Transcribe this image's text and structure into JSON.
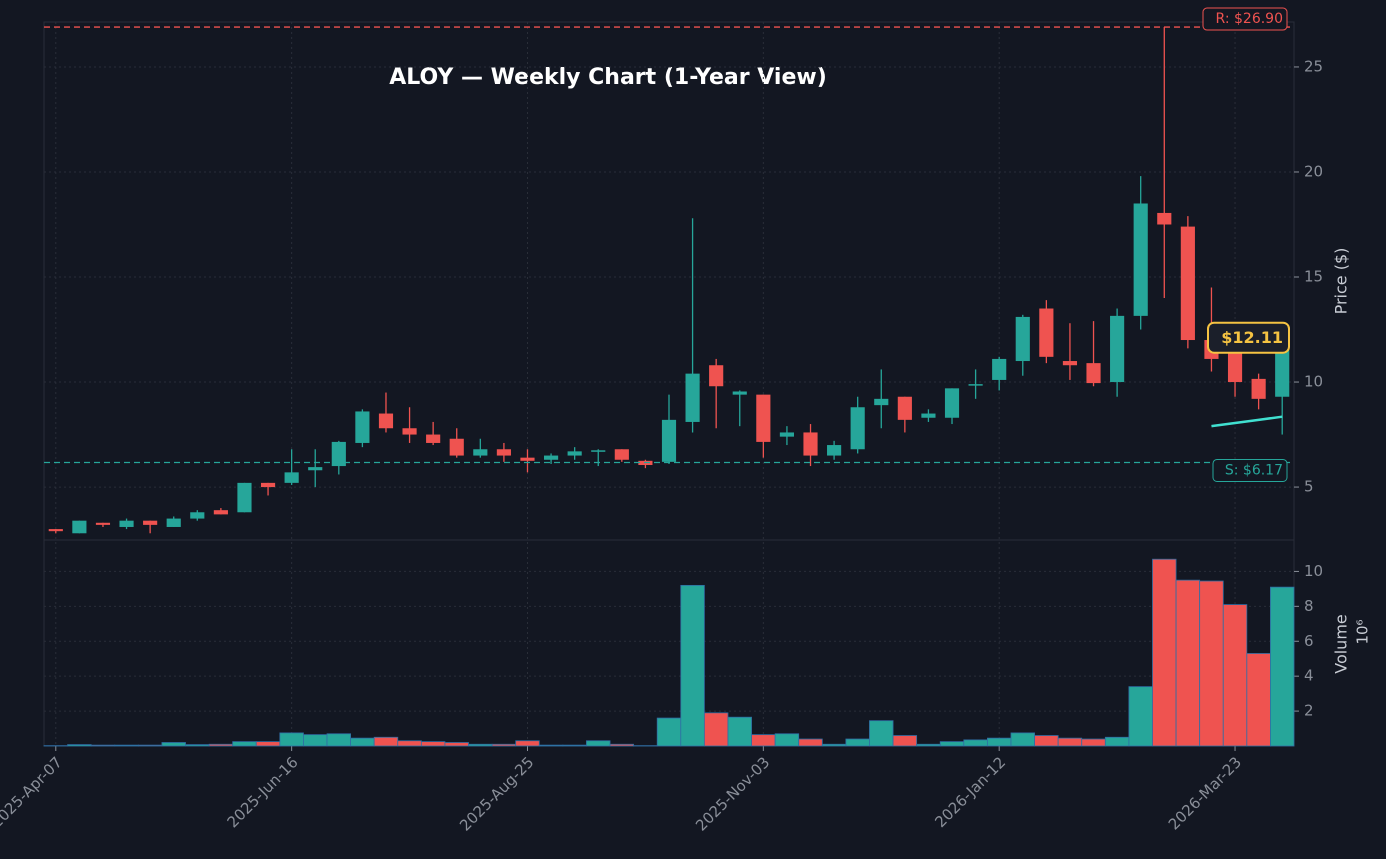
{
  "chart_data": {
    "type": "candlestick",
    "title": "ALOY — Weekly Chart (1-Year View)",
    "y_label": "Price ($)",
    "volume_label": "Volume",
    "volume_scale": "10⁶",
    "categories": [
      "2025-Apr-07",
      null,
      null,
      null,
      null,
      null,
      null,
      null,
      null,
      null,
      "2025-Jun-16",
      null,
      null,
      null,
      null,
      null,
      null,
      null,
      null,
      null,
      "2025-Aug-25",
      null,
      null,
      null,
      null,
      null,
      null,
      null,
      null,
      null,
      "2025-Nov-03",
      null,
      null,
      null,
      null,
      null,
      null,
      null,
      null,
      null,
      "2026-Jan-12",
      null,
      null,
      null,
      null,
      null,
      null,
      null,
      null,
      null,
      "2026-Mar-23",
      null,
      null
    ],
    "open": [
      3.0,
      2.8,
      3.3,
      3.1,
      3.4,
      3.1,
      3.5,
      3.9,
      3.8,
      5.2,
      5.2,
      5.8,
      6.0,
      7.1,
      8.5,
      7.8,
      7.5,
      7.3,
      6.5,
      6.8,
      6.4,
      6.3,
      6.5,
      6.7,
      6.8,
      6.25,
      6.2,
      8.1,
      10.8,
      9.4,
      9.4,
      7.4,
      7.6,
      6.5,
      6.8,
      8.9,
      9.3,
      8.3,
      8.3,
      9.85,
      10.1,
      11.0,
      13.5,
      11.0,
      10.9,
      10.0,
      13.15,
      18.05,
      17.4,
      12.0,
      11.9,
      10.15,
      9.3
    ],
    "high": [
      3.0,
      3.4,
      3.3,
      3.5,
      3.4,
      3.6,
      3.9,
      4.0,
      5.2,
      5.2,
      6.8,
      6.8,
      7.2,
      8.7,
      9.5,
      8.8,
      8.1,
      7.8,
      7.3,
      7.1,
      6.8,
      6.6,
      6.9,
      6.8,
      6.8,
      6.3,
      9.4,
      17.8,
      11.1,
      9.6,
      9.4,
      7.9,
      8.0,
      7.2,
      9.3,
      10.6,
      9.3,
      8.7,
      9.7,
      10.6,
      11.2,
      13.2,
      13.9,
      12.8,
      12.9,
      13.5,
      19.8,
      26.9,
      17.9,
      14.5,
      12.4,
      10.4,
      12.2
    ],
    "low": [
      2.8,
      2.8,
      3.1,
      3.0,
      2.8,
      3.1,
      3.4,
      3.7,
      3.8,
      4.6,
      5.1,
      5.0,
      5.6,
      6.9,
      7.6,
      7.1,
      7.0,
      6.4,
      6.4,
      6.2,
      5.7,
      6.1,
      6.3,
      6.0,
      6.2,
      5.9,
      6.1,
      7.6,
      7.8,
      7.9,
      6.4,
      7.0,
      6.0,
      6.3,
      6.6,
      7.8,
      7.6,
      8.1,
      8.0,
      9.2,
      9.6,
      10.3,
      10.9,
      10.1,
      9.8,
      9.3,
      12.5,
      14.0,
      11.6,
      10.5,
      9.3,
      8.7,
      7.5
    ],
    "close": [
      2.9,
      3.4,
      3.2,
      3.4,
      3.2,
      3.5,
      3.8,
      3.7,
      5.2,
      5.0,
      5.7,
      5.95,
      7.15,
      8.6,
      7.8,
      7.5,
      7.1,
      6.5,
      6.8,
      6.5,
      6.25,
      6.5,
      6.7,
      6.75,
      6.3,
      6.05,
      8.2,
      10.4,
      9.8,
      9.55,
      7.15,
      7.6,
      6.5,
      7.0,
      8.8,
      9.2,
      8.2,
      8.5,
      9.7,
      9.9,
      11.1,
      13.1,
      11.2,
      10.8,
      9.95,
      13.15,
      18.5,
      17.5,
      12.0,
      11.1,
      10.0,
      9.2,
      12.11
    ],
    "volume": [
      0.02,
      0.08,
      0.05,
      0.05,
      0.05,
      0.2,
      0.08,
      0.1,
      0.25,
      0.25,
      0.75,
      0.65,
      0.7,
      0.45,
      0.5,
      0.3,
      0.25,
      0.2,
      0.1,
      0.1,
      0.3,
      0.05,
      0.05,
      0.3,
      0.1,
      0.02,
      1.6,
      9.2,
      1.9,
      1.65,
      0.65,
      0.7,
      0.4,
      0.1,
      0.4,
      1.45,
      0.6,
      0.1,
      0.25,
      0.35,
      0.45,
      0.75,
      0.6,
      0.45,
      0.4,
      0.5,
      3.4,
      10.7,
      9.5,
      9.45,
      8.1,
      5.3,
      9.1
    ],
    "up_color": "#26a69a",
    "down_color": "#ef5350",
    "ylim": [
      2.48,
      27.14
    ],
    "yticks": [
      5,
      10,
      15,
      20,
      25
    ],
    "volume_ylim": [
      0,
      11.8
    ],
    "volume_yticks": [
      2,
      4,
      6,
      8,
      10
    ],
    "grid": true,
    "moving_average": {
      "color": "#40e0d0",
      "values": [
        null,
        null,
        null,
        null,
        null,
        null,
        null,
        null,
        null,
        null,
        null,
        null,
        null,
        null,
        null,
        null,
        null,
        null,
        null,
        null,
        null,
        null,
        null,
        null,
        null,
        null,
        null,
        null,
        null,
        null,
        null,
        null,
        null,
        null,
        null,
        null,
        null,
        null,
        null,
        null,
        null,
        null,
        null,
        null,
        null,
        null,
        null,
        null,
        null,
        7.9,
        8.05,
        8.2,
        8.35
      ]
    },
    "resistance": {
      "value": 26.9,
      "label": "R: $26.90",
      "color": "#ef5350"
    },
    "support": {
      "value": 6.17,
      "label": "S: $6.17",
      "color": "#26a69a"
    },
    "last_price": {
      "value": 12.11,
      "label": "$12.11",
      "color": "#f5c342"
    }
  }
}
